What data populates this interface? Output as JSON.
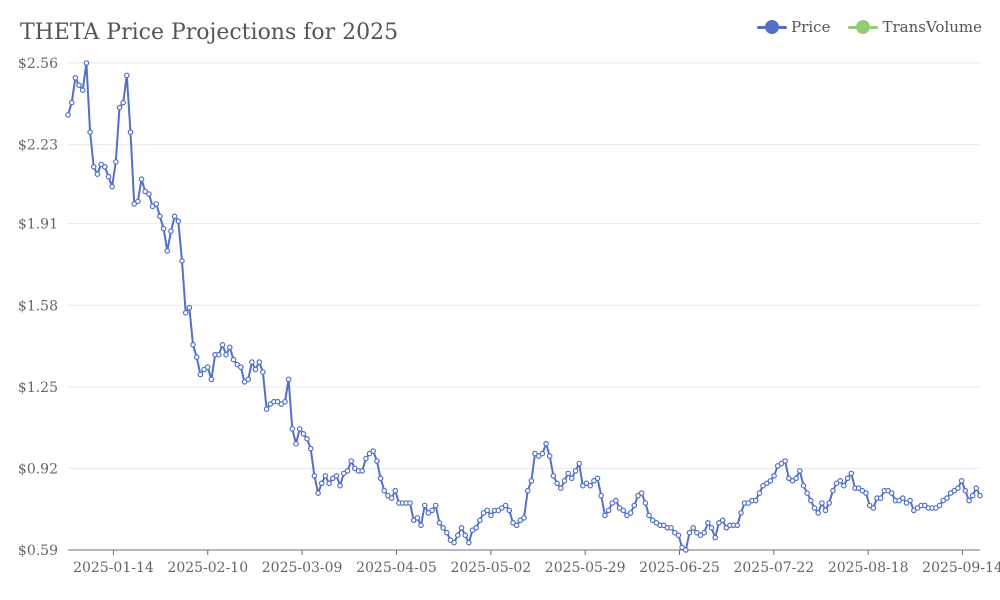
{
  "title": "THETA Price Projections for 2025",
  "legend": [
    {
      "label": "Price",
      "color": "#5470c6"
    },
    {
      "label": "TransVolume",
      "color": "#91cc75"
    }
  ],
  "colors": {
    "price": "#5470c6",
    "transvolume": "#91cc75",
    "grid": "#e6e9f5",
    "axis": "#6e7079"
  },
  "chart_data": {
    "type": "line",
    "title": "THETA Price Projections for 2025",
    "xlabel": "",
    "ylabel": "",
    "ylim": [
      0.59,
      2.56
    ],
    "y_ticks": [
      "$0.59",
      "$0.92",
      "$1.25",
      "$1.58",
      "$1.91",
      "$2.23",
      "$2.56"
    ],
    "y_tick_values": [
      0.59,
      0.92,
      1.25,
      1.58,
      1.91,
      2.23,
      2.56
    ],
    "x_ticks": [
      "2025-01-14",
      "2025-02-10",
      "2025-03-09",
      "2025-04-05",
      "2025-05-02",
      "2025-05-29",
      "2025-06-25",
      "2025-07-22",
      "2025-08-18",
      "2025-09-14"
    ],
    "grid": true,
    "legend_position": "top-right",
    "x_start": "2025-01-01",
    "x_end": "2025-09-19",
    "series": [
      {
        "name": "Price",
        "values": [
          2.35,
          2.4,
          2.5,
          2.47,
          2.45,
          2.56,
          2.28,
          2.14,
          2.11,
          2.15,
          2.14,
          2.1,
          2.06,
          2.16,
          2.38,
          2.4,
          2.51,
          2.28,
          1.99,
          2.0,
          2.09,
          2.04,
          2.03,
          1.98,
          1.99,
          1.94,
          1.89,
          1.8,
          1.88,
          1.94,
          1.92,
          1.76,
          1.55,
          1.57,
          1.42,
          1.37,
          1.3,
          1.32,
          1.33,
          1.28,
          1.38,
          1.38,
          1.42,
          1.38,
          1.41,
          1.36,
          1.34,
          1.33,
          1.27,
          1.28,
          1.35,
          1.32,
          1.35,
          1.31,
          1.16,
          1.18,
          1.19,
          1.19,
          1.18,
          1.19,
          1.28,
          1.08,
          1.02,
          1.08,
          1.06,
          1.04,
          1.0,
          0.89,
          0.82,
          0.86,
          0.89,
          0.86,
          0.88,
          0.89,
          0.85,
          0.9,
          0.91,
          0.95,
          0.92,
          0.91,
          0.91,
          0.96,
          0.98,
          0.99,
          0.95,
          0.88,
          0.83,
          0.81,
          0.8,
          0.83,
          0.78,
          0.78,
          0.78,
          0.78,
          0.71,
          0.72,
          0.69,
          0.77,
          0.74,
          0.75,
          0.77,
          0.7,
          0.68,
          0.66,
          0.63,
          0.62,
          0.65,
          0.68,
          0.65,
          0.62,
          0.67,
          0.68,
          0.71,
          0.74,
          0.75,
          0.73,
          0.75,
          0.75,
          0.76,
          0.77,
          0.75,
          0.7,
          0.69,
          0.71,
          0.72,
          0.83,
          0.87,
          0.98,
          0.97,
          0.98,
          1.02,
          0.97,
          0.89,
          0.86,
          0.84,
          0.87,
          0.9,
          0.88,
          0.91,
          0.94,
          0.85,
          0.86,
          0.85,
          0.87,
          0.88,
          0.81,
          0.73,
          0.75,
          0.78,
          0.79,
          0.76,
          0.75,
          0.73,
          0.74,
          0.77,
          0.81,
          0.82,
          0.78,
          0.73,
          0.71,
          0.7,
          0.69,
          0.69,
          0.68,
          0.68,
          0.66,
          0.65,
          0.6,
          0.59,
          0.66,
          0.68,
          0.66,
          0.65,
          0.66,
          0.7,
          0.68,
          0.64,
          0.7,
          0.71,
          0.68,
          0.69,
          0.69,
          0.69,
          0.74,
          0.78,
          0.78,
          0.79,
          0.79,
          0.82,
          0.85,
          0.86,
          0.87,
          0.89,
          0.93,
          0.94,
          0.95,
          0.88,
          0.87,
          0.88,
          0.91,
          0.85,
          0.82,
          0.79,
          0.76,
          0.74,
          0.78,
          0.75,
          0.78,
          0.83,
          0.86,
          0.87,
          0.85,
          0.88,
          0.9,
          0.84,
          0.84,
          0.83,
          0.82,
          0.77,
          0.76,
          0.8,
          0.8,
          0.83,
          0.83,
          0.82,
          0.79,
          0.79,
          0.8,
          0.78,
          0.79,
          0.75,
          0.76,
          0.77,
          0.77,
          0.76,
          0.76,
          0.76,
          0.77,
          0.79,
          0.8,
          0.82,
          0.83,
          0.84,
          0.87,
          0.83,
          0.79,
          0.81,
          0.84,
          0.81
        ]
      }
    ]
  }
}
